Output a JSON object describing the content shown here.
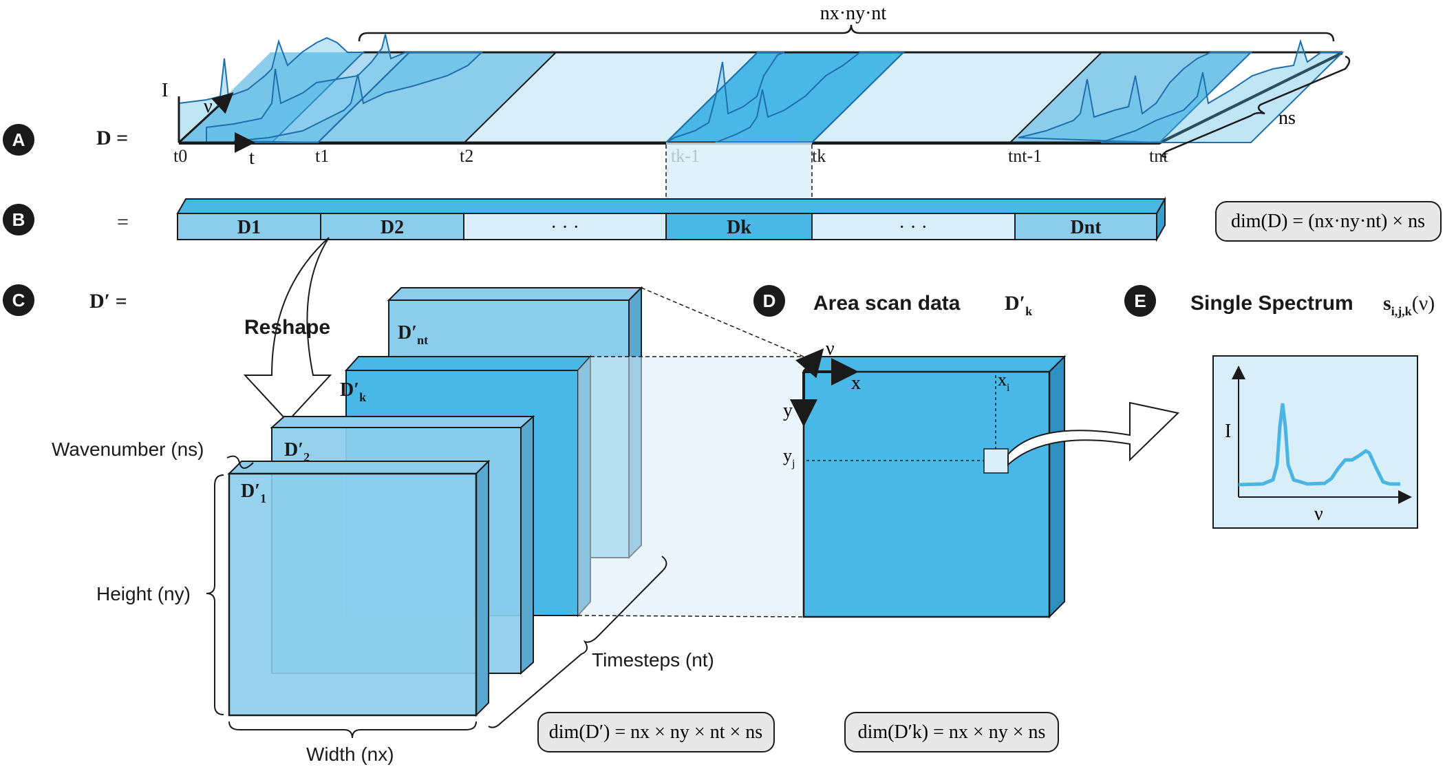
{
  "panels": {
    "A": {
      "badge": "A",
      "label": "D =",
      "width_label": "nx·ny·nt",
      "depth_label": "ns",
      "axis_I": "I",
      "axis_nu": "ν",
      "axis_t": "t"
    },
    "B": {
      "badge": "B",
      "label": "=",
      "blocks": [
        "D1",
        "D2",
        "· · ·",
        "Dk",
        "· · ·",
        "Dnt"
      ],
      "dim": "dim(D) = (nx·ny·nt) × ns"
    },
    "C": {
      "badge": "C",
      "label": "D′ =",
      "reshape": "Reshape",
      "wavenumber": "Wavenumber (ns)",
      "height": "Height (ny)",
      "width": "Width (nx)",
      "timesteps": "Timesteps (nt)",
      "dim": "dim(D′) = nx × ny × nt × ns"
    },
    "D": {
      "badge": "D",
      "title": "Area scan data",
      "symbol": "D′k",
      "dim": "dim(D′k) = nx × ny × ns"
    },
    "E": {
      "badge": "E",
      "title": "Single Spectrum",
      "symbol": "si,j,k(ν)"
    }
  },
  "time_ticks": [
    "t0",
    "t",
    "t1",
    "t2",
    "tk-1",
    "tk",
    "tnt-1",
    "tnt"
  ],
  "colors": {
    "light": "#d8eef8",
    "mid": "#8ccdec",
    "strong": "#4ab8e6",
    "edge": "#1a1a1a",
    "curve": "#4ab5e2",
    "badge": "#1a1a1a"
  }
}
